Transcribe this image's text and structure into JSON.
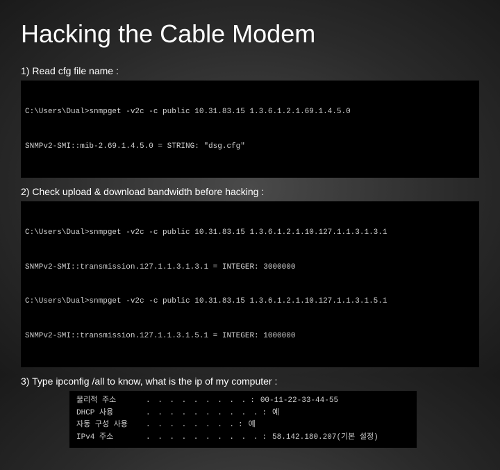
{
  "slide": {
    "title": "Hacking the Cable Modem",
    "background_gradient": [
      "#4a4a4a",
      "#2a2a2a",
      "#1a1a1a"
    ],
    "title_color": "#ffffff",
    "title_fontsize": 36,
    "step_color": "#ffffff",
    "step_fontsize": 14,
    "terminal_bg": "#000000",
    "terminal_fg": "#d0d0d0",
    "terminal_fontsize": 11
  },
  "steps": {
    "s1": {
      "label": "1) Read cfg file name :",
      "lines": {
        "l0": "C:\\Users\\Dual>snmpget -v2c -c public 10.31.83.15 1.3.6.1.2.1.69.1.4.5.0",
        "l1": "SNMPv2-SMI::mib-2.69.1.4.5.0 = STRING: \"dsg.cfg\""
      }
    },
    "s2": {
      "label": "2) Check upload & download bandwidth before hacking :",
      "lines": {
        "l0": "C:\\Users\\Dual>snmpget -v2c -c public 10.31.83.15 1.3.6.1.2.1.10.127.1.1.3.1.3.1",
        "l1": "SNMPv2-SMI::transmission.127.1.1.3.1.3.1 = INTEGER: 3000000",
        "l2": "C:\\Users\\Dual>snmpget -v2c -c public 10.31.83.15 1.3.6.1.2.1.10.127.1.1.3.1.5.1",
        "l3": "SNMPv2-SMI::transmission.127.1.1.3.1.5.1 = INTEGER: 1000000"
      }
    },
    "s3": {
      "label": "3) Type ipconfig /all to know, what is the ip of my computer :",
      "rows": {
        "r0": {
          "label": "물리적 주소",
          "value": "00-11-22-33-44-55"
        },
        "r1": {
          "label": "DHCP 사용",
          "value": "예"
        },
        "r2": {
          "label": "자동 구성 사용",
          "value": "예"
        },
        "r3": {
          "label": "IPv4 주소",
          "value": "58.142.180.207(기본 설정)"
        }
      }
    }
  }
}
